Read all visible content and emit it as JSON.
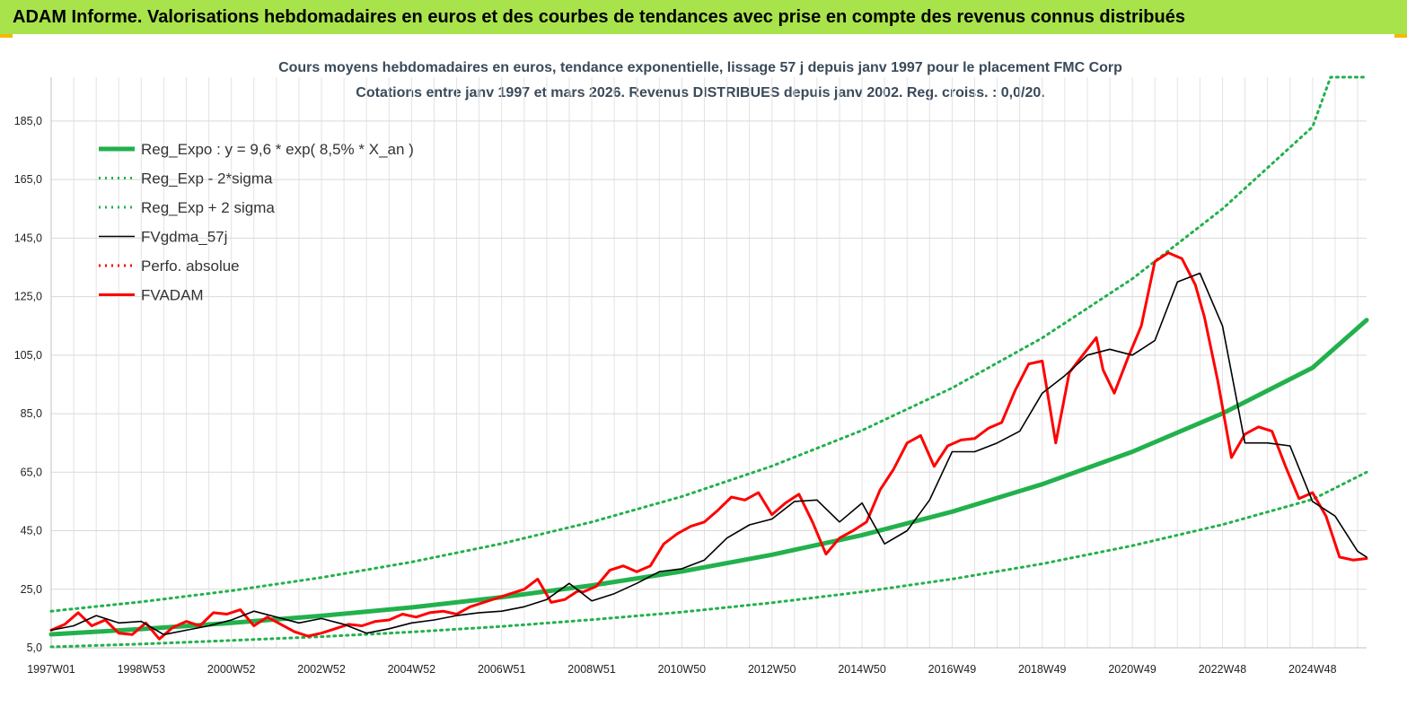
{
  "header": {
    "banner": "ADAM Informe. Valorisations hebdomadaires en euros et des courbes de tendances avec prise en compte des revenus connus distribués"
  },
  "chart_data": {
    "type": "line",
    "title": "Cours moyens hebdomadaires en euros, tendance exponentielle, lissage 57 j depuis janv 1997 pour le placement FMC Corp",
    "subtitle": "Cotations entre janv 1997 et mars 2026. Revenus DISTRIBUES depuis janv 2002. Reg. croiss. : 0,0/20.",
    "xlabel": "",
    "ylabel": "",
    "ylim": [
      5,
      200
    ],
    "xlim": [
      1997.0,
      2026.2
    ],
    "y_ticks": [
      "5,0",
      "25,0",
      "45,0",
      "65,0",
      "85,0",
      "105,0",
      "125,0",
      "145,0",
      "165,0",
      "185,0"
    ],
    "x_ticks": [
      {
        "label": "1997W01",
        "x": 1997.0
      },
      {
        "label": "1998W53",
        "x": 1999.0
      },
      {
        "label": "2000W52",
        "x": 2001.0
      },
      {
        "label": "2002W52",
        "x": 2003.0
      },
      {
        "label": "2004W52",
        "x": 2005.0
      },
      {
        "label": "2006W51",
        "x": 2007.0
      },
      {
        "label": "2008W51",
        "x": 2009.0
      },
      {
        "label": "2010W50",
        "x": 2011.0
      },
      {
        "label": "2012W50",
        "x": 2013.0
      },
      {
        "label": "2014W50",
        "x": 2015.0
      },
      {
        "label": "2016W49",
        "x": 2017.0
      },
      {
        "label": "2018W49",
        "x": 2019.0
      },
      {
        "label": "2020W49",
        "x": 2021.0
      },
      {
        "label": "2022W48",
        "x": 2023.0
      },
      {
        "label": "2024W48",
        "x": 2025.0
      }
    ],
    "grid": true,
    "legend_position": "top-left",
    "series": [
      {
        "name": "Reg_Expo : y = 9,6 * exp( 8,5% *  X_an )",
        "color": "#22b14c",
        "style": "solid-thick",
        "x": [
          1997.0,
          1999.0,
          2001.0,
          2003.0,
          2005.0,
          2007.0,
          2009.0,
          2011.0,
          2013.0,
          2015.0,
          2017.0,
          2019.0,
          2021.0,
          2023.0,
          2025.0,
          2026.2
        ],
        "y": [
          9.6,
          11.4,
          13.5,
          15.9,
          18.8,
          22.3,
          26.3,
          31.1,
          36.8,
          43.5,
          51.5,
          60.9,
          72.0,
          85.1,
          100.7,
          117.0
        ]
      },
      {
        "name": "Reg_Exp - 2*sigma",
        "color": "#22b14c",
        "style": "dotted",
        "x": [
          1997.0,
          1999.0,
          2001.0,
          2003.0,
          2005.0,
          2007.0,
          2009.0,
          2011.0,
          2013.0,
          2015.0,
          2017.0,
          2019.0,
          2021.0,
          2023.0,
          2025.0,
          2026.2
        ],
        "y": [
          5.3,
          6.3,
          7.5,
          8.8,
          10.4,
          12.3,
          14.6,
          17.2,
          20.4,
          24.1,
          28.5,
          33.7,
          39.9,
          47.1,
          55.7,
          65.0
        ]
      },
      {
        "name": "Reg_Exp + 2 sigma",
        "color": "#22b14c",
        "style": "dotted",
        "x": [
          1997.0,
          1999.0,
          2001.0,
          2003.0,
          2005.0,
          2007.0,
          2009.0,
          2011.0,
          2013.0,
          2015.0,
          2017.0,
          2019.0,
          2021.0,
          2023.0,
          2025.0,
          2025.4,
          2026.2
        ],
        "y": [
          17.5,
          20.7,
          24.5,
          29.0,
          34.3,
          40.6,
          48.0,
          56.7,
          67.1,
          79.3,
          93.8,
          110.9,
          131.1,
          155.0,
          183.0,
          200.0,
          200.0
        ]
      },
      {
        "name": "FVgdma_57j",
        "color": "#000000",
        "style": "solid",
        "x": [
          1997.0,
          1997.5,
          1998.0,
          1998.5,
          1999.0,
          1999.5,
          2000.0,
          2000.5,
          2001.0,
          2001.5,
          2002.0,
          2002.5,
          2003.0,
          2003.5,
          2004.0,
          2004.5,
          2005.0,
          2005.5,
          2006.0,
          2006.5,
          2007.0,
          2007.5,
          2008.0,
          2008.5,
          2009.0,
          2009.5,
          2010.0,
          2010.5,
          2011.0,
          2011.5,
          2012.0,
          2012.5,
          2013.0,
          2013.5,
          2014.0,
          2014.5,
          2015.0,
          2015.5,
          2016.0,
          2016.5,
          2017.0,
          2017.5,
          2018.0,
          2018.5,
          2019.0,
          2019.5,
          2020.0,
          2020.5,
          2021.0,
          2021.5,
          2022.0,
          2022.5,
          2023.0,
          2023.5,
          2024.0,
          2024.5,
          2025.0,
          2025.5,
          2026.0,
          2026.2
        ],
        "y": [
          11.0,
          12.5,
          16.0,
          13.5,
          14.0,
          9.5,
          11.0,
          12.5,
          14.5,
          17.5,
          15.5,
          13.5,
          15.0,
          13.0,
          10.0,
          11.5,
          13.5,
          14.5,
          16.0,
          17.0,
          17.5,
          19.0,
          21.5,
          27.0,
          21.0,
          23.5,
          27.0,
          31.0,
          32.0,
          35.0,
          42.5,
          47.0,
          49.0,
          55.0,
          55.5,
          48.0,
          54.5,
          40.5,
          45.0,
          55.5,
          72.0,
          72.0,
          75.0,
          79.0,
          92.0,
          98.0,
          105.0,
          107.0,
          105.0,
          110.0,
          130.0,
          133.0,
          115.0,
          75.0,
          75.0,
          74.0,
          55.0,
          50.0,
          38.0,
          36.0
        ]
      },
      {
        "name": "Perfo. absolue",
        "color": "#ff0000",
        "style": "dotted",
        "x": [],
        "y": []
      },
      {
        "name": "FVADAM",
        "color": "#ff0000",
        "style": "solid-thick",
        "x": [
          1997.0,
          1997.3,
          1997.6,
          1997.9,
          1998.2,
          1998.5,
          1998.8,
          1999.1,
          1999.4,
          1999.7,
          2000.0,
          2000.3,
          2000.6,
          2000.9,
          2001.2,
          2001.5,
          2001.8,
          2002.1,
          2002.4,
          2002.7,
          2003.0,
          2003.3,
          2003.6,
          2003.9,
          2004.2,
          2004.5,
          2004.8,
          2005.1,
          2005.4,
          2005.7,
          2006.0,
          2006.3,
          2006.6,
          2006.9,
          2007.2,
          2007.5,
          2007.8,
          2008.1,
          2008.4,
          2008.7,
          2008.8,
          2009.1,
          2009.4,
          2009.7,
          2010.0,
          2010.3,
          2010.6,
          2010.9,
          2011.2,
          2011.5,
          2011.8,
          2012.1,
          2012.4,
          2012.7,
          2013.0,
          2013.3,
          2013.6,
          2013.9,
          2014.2,
          2014.5,
          2014.8,
          2015.1,
          2015.4,
          2015.7,
          2016.0,
          2016.3,
          2016.6,
          2016.9,
          2017.2,
          2017.5,
          2017.8,
          2018.1,
          2018.4,
          2018.7,
          2019.0,
          2019.3,
          2019.6,
          2019.9,
          2020.2,
          2020.35,
          2020.6,
          2020.9,
          2021.2,
          2021.5,
          2021.8,
          2022.1,
          2022.4,
          2022.6,
          2022.9,
          2023.2,
          2023.5,
          2023.8,
          2024.1,
          2024.4,
          2024.7,
          2025.0,
          2025.3,
          2025.6,
          2025.9,
          2026.2
        ],
        "y": [
          11.0,
          13.0,
          17.0,
          12.5,
          14.5,
          10.0,
          9.5,
          13.5,
          8.0,
          12.0,
          14.0,
          12.5,
          17.0,
          16.5,
          18.0,
          12.5,
          15.5,
          13.0,
          10.5,
          9.0,
          10.0,
          11.5,
          13.0,
          12.5,
          14.0,
          14.5,
          16.5,
          15.5,
          17.0,
          17.5,
          16.5,
          19.0,
          20.5,
          22.0,
          23.5,
          25.0,
          28.5,
          20.5,
          21.5,
          24.5,
          24.0,
          26.0,
          31.5,
          33.0,
          31.0,
          33.0,
          40.5,
          44.0,
          46.5,
          48.0,
          52.0,
          56.5,
          55.5,
          58.0,
          50.5,
          54.5,
          57.5,
          48.0,
          37.0,
          42.5,
          45.0,
          48.0,
          59.0,
          66.0,
          75.0,
          77.5,
          67.0,
          74.0,
          76.0,
          76.5,
          80.0,
          82.0,
          93.0,
          102.0,
          103.0,
          75.0,
          99.0,
          105.0,
          111.0,
          100.0,
          92.0,
          104.0,
          115.0,
          137.0,
          140.0,
          138.0,
          129.0,
          118.0,
          96.0,
          70.0,
          78.0,
          80.5,
          79.0,
          67.0,
          56.0,
          58.0,
          50.0,
          36.0,
          35.0,
          35.5
        ]
      }
    ]
  }
}
